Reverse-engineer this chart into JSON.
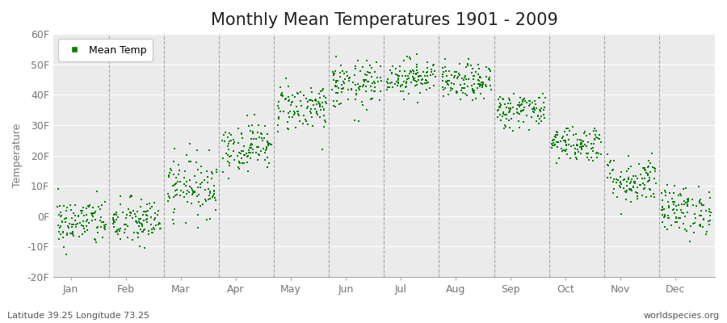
{
  "title": "Monthly Mean Temperatures 1901 - 2009",
  "ylabel": "Temperature",
  "xlabel_labels": [
    "Jan",
    "Feb",
    "Mar",
    "Apr",
    "May",
    "Jun",
    "Jul",
    "Aug",
    "Sep",
    "Oct",
    "Nov",
    "Dec"
  ],
  "ytick_labels": [
    "-20F",
    "-10F",
    "0F",
    "10F",
    "20F",
    "30F",
    "40F",
    "50F",
    "60F"
  ],
  "ytick_values": [
    -20,
    -10,
    0,
    10,
    20,
    30,
    40,
    50,
    60
  ],
  "ylim": [
    -20,
    60
  ],
  "dot_color": "#008000",
  "bg_color": "#ffffff",
  "plot_bg_color": "#ebebeb",
  "legend_label": "Mean Temp",
  "footer_left": "Latitude 39.25 Longitude 73.25",
  "footer_right": "worldspecies.org",
  "title_fontsize": 15,
  "axis_label_fontsize": 9,
  "tick_fontsize": 9,
  "month_means": [
    -2,
    -2,
    10,
    23,
    36,
    43,
    46,
    44,
    35,
    24,
    12,
    2
  ],
  "month_stds": [
    4,
    4,
    5,
    4,
    4,
    4,
    3,
    3,
    3,
    3,
    4,
    4
  ],
  "n_years": 109,
  "vline_color": "#888888",
  "grid_color": "#ffffff",
  "tick_color": "#777777",
  "spine_color": "#aaaaaa"
}
